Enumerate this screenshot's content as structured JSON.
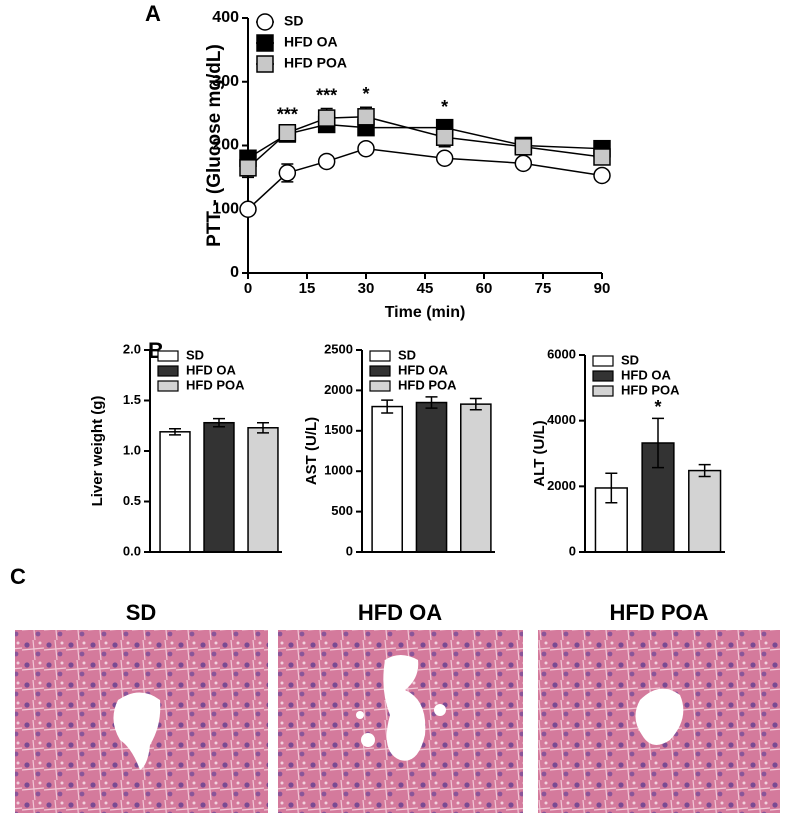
{
  "chart_data": [
    {
      "type": "line",
      "panel_label": "A",
      "xlabel": "Time (min)",
      "ylabel": "PTT - (Glucose mg/dL)",
      "x": [
        0,
        10,
        20,
        30,
        50,
        70,
        90
      ],
      "xlim": [
        0,
        90
      ],
      "xticks": [
        0,
        15,
        30,
        45,
        60,
        75,
        90
      ],
      "ylim": [
        0,
        400
      ],
      "yticks": [
        0,
        100,
        200,
        300,
        400
      ],
      "series": [
        {
          "name": "SD",
          "color": "#ffffff",
          "marker": "circle",
          "values": [
            100,
            157,
            175,
            195,
            180,
            172,
            153
          ],
          "errors": [
            0,
            14,
            6,
            6,
            5,
            5,
            6
          ]
        },
        {
          "name": "HFD OA",
          "color": "#000000",
          "marker": "square",
          "values": [
            180,
            218,
            233,
            228,
            228,
            200,
            195
          ],
          "errors": [
            10,
            8,
            10,
            10,
            12,
            10,
            12
          ]
        },
        {
          "name": "HFD POA",
          "color": "#c8c8c8",
          "marker": "square",
          "values": [
            165,
            220,
            243,
            245,
            213,
            198,
            182
          ],
          "errors": [
            15,
            8,
            15,
            15,
            15,
            10,
            12
          ]
        }
      ],
      "annotations": [
        {
          "text": "***",
          "x": 10
        },
        {
          "text": "***",
          "x": 20
        },
        {
          "text": "*",
          "x": 30
        },
        {
          "text": "*",
          "x": 50
        }
      ]
    },
    {
      "type": "bar",
      "panel_label": "B",
      "ylabel": "Liver weight (g)",
      "ylim": [
        0,
        2
      ],
      "yticks": [
        {
          "value": 0,
          "label": "0.0"
        },
        {
          "value": 0.5,
          "label": "0.5"
        },
        {
          "value": 1,
          "label": "1.0"
        },
        {
          "value": 1.5,
          "label": "1.5"
        },
        {
          "value": 2,
          "label": "2.0"
        }
      ],
      "series": [
        {
          "name": "SD",
          "color": "#ffffff",
          "values": [
            1.19
          ],
          "errors": [
            0.03
          ]
        },
        {
          "name": "HFD OA",
          "color": "#333333",
          "values": [
            1.28
          ],
          "errors": [
            0.04
          ]
        },
        {
          "name": "HFD POA",
          "color": "#d3d3d3",
          "values": [
            1.23
          ],
          "errors": [
            0.05
          ]
        }
      ]
    },
    {
      "type": "bar",
      "ylabel": "AST (U/L)",
      "ylim": [
        0,
        2500
      ],
      "yticks": [
        0,
        500,
        1000,
        1500,
        2000,
        2500
      ],
      "series": [
        {
          "name": "SD",
          "color": "#ffffff",
          "values": [
            1800
          ],
          "errors": [
            80
          ]
        },
        {
          "name": "HFD OA",
          "color": "#333333",
          "values": [
            1850
          ],
          "errors": [
            70
          ]
        },
        {
          "name": "HFD POA",
          "color": "#d3d3d3",
          "values": [
            1830
          ],
          "errors": [
            70
          ]
        }
      ]
    },
    {
      "type": "bar",
      "ylabel": "ALT (U/L)",
      "ylim": [
        0,
        6000
      ],
      "yticks": [
        0,
        2000,
        4000,
        6000
      ],
      "series": [
        {
          "name": "SD",
          "color": "#ffffff",
          "values": [
            1950
          ],
          "errors": [
            450
          ]
        },
        {
          "name": "HFD OA",
          "color": "#333333",
          "values": [
            3320
          ],
          "errors": [
            750
          ],
          "annotation": "*"
        },
        {
          "name": "HFD POA",
          "color": "#d3d3d3",
          "values": [
            2480
          ],
          "errors": [
            180
          ]
        }
      ]
    }
  ],
  "histology": {
    "panel_label": "C",
    "titles": [
      "SD",
      "HFD OA",
      "HFD POA"
    ]
  }
}
